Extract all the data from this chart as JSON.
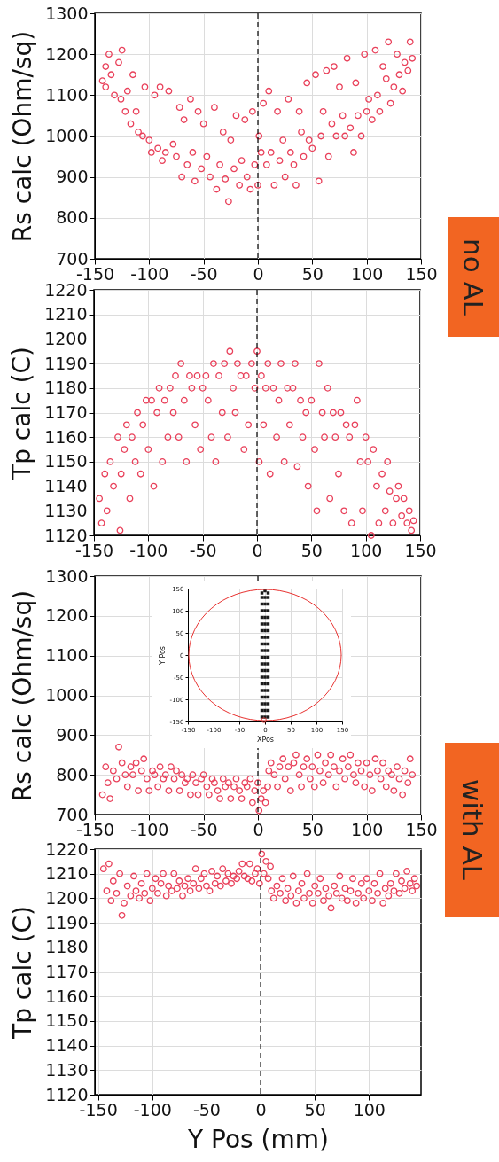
{
  "chart_data": [
    {
      "type": "scatter",
      "ylabel": "Rs calc (Ohm/sq)",
      "xlim": [
        -150,
        150
      ],
      "xticks": [
        -150,
        -100,
        -50,
        0,
        50,
        100,
        150
      ],
      "ylim": [
        700,
        1300
      ],
      "yticks": [
        700,
        800,
        900,
        1000,
        1100,
        1200,
        1300
      ],
      "grid": true,
      "marker": "circle",
      "annotations": [
        "no AL"
      ],
      "ref_lines": [
        {
          "axis": "x",
          "value": 0,
          "color": "#000000",
          "line_style": "dashed"
        }
      ],
      "series": [
        {
          "color": "#e9405a",
          "x": [
            -143,
            -140,
            -140,
            -137,
            -135,
            -132,
            -128,
            -126,
            -125,
            -122,
            -120,
            -117,
            -115,
            -112,
            -110,
            -106,
            -104,
            -100,
            -98,
            -95,
            -92,
            -90,
            -88,
            -85,
            -82,
            -78,
            -75,
            -72,
            -70,
            -68,
            -65,
            -62,
            -60,
            -58,
            -55,
            -52,
            -50,
            -47,
            -44,
            -40,
            -38,
            -35,
            -32,
            -30,
            -27,
            -25,
            -22,
            -20,
            -17,
            -15,
            -12,
            -10,
            -7,
            -5,
            -3,
            0,
            1,
            3,
            5,
            8,
            10,
            12,
            15,
            18,
            20,
            23,
            25,
            28,
            30,
            33,
            35,
            38,
            40,
            42,
            45,
            47,
            50,
            53,
            56,
            58,
            60,
            63,
            65,
            68,
            70,
            72,
            75,
            78,
            80,
            82,
            85,
            88,
            90,
            92,
            95,
            98,
            100,
            102,
            105,
            108,
            110,
            112,
            115,
            118,
            120,
            122,
            125,
            128,
            130,
            133,
            135,
            138,
            140,
            142
          ],
          "values": [
            1135,
            1170,
            1120,
            1200,
            1150,
            1100,
            1180,
            1090,
            1210,
            1060,
            1110,
            1030,
            1150,
            1060,
            1010,
            1000,
            1120,
            990,
            960,
            1100,
            970,
            1120,
            940,
            960,
            1110,
            980,
            950,
            1070,
            900,
            1040,
            930,
            1090,
            960,
            890,
            1060,
            920,
            1030,
            950,
            900,
            1070,
            870,
            930,
            1010,
            895,
            840,
            990,
            920,
            1050,
            880,
            940,
            1040,
            900,
            870,
            1060,
            930,
            880,
            1000,
            960,
            1080,
            930,
            1110,
            960,
            880,
            1060,
            940,
            990,
            900,
            1090,
            960,
            930,
            880,
            1060,
            1010,
            950,
            1130,
            990,
            970,
            1150,
            890,
            1000,
            1060,
            1160,
            950,
            1030,
            1170,
            1000,
            1120,
            1050,
            1000,
            1190,
            1020,
            960,
            1130,
            1050,
            1000,
            1200,
            1060,
            1090,
            1040,
            1210,
            1100,
            1060,
            1170,
            1140,
            1230,
            1080,
            1120,
            1200,
            1150,
            1110,
            1180,
            1160,
            1230,
            1190
          ]
        }
      ]
    },
    {
      "type": "scatter",
      "ylabel": "Tp calc (C)",
      "xlim": [
        -150,
        150
      ],
      "xticks": [
        -150,
        -100,
        -50,
        0,
        50,
        100,
        150
      ],
      "ylim": [
        1120,
        1220
      ],
      "yticks": [
        1120,
        1130,
        1140,
        1150,
        1160,
        1170,
        1180,
        1190,
        1200,
        1210,
        1220
      ],
      "grid": true,
      "marker": "circle",
      "ref_lines": [
        {
          "axis": "x",
          "value": 0,
          "color": "#000000",
          "line_style": "dashed"
        }
      ],
      "series": [
        {
          "color": "#e9405a",
          "x": [
            -145,
            -143,
            -140,
            -138,
            -135,
            -132,
            -128,
            -126,
            -125,
            -122,
            -120,
            -117,
            -115,
            -112,
            -110,
            -107,
            -105,
            -102,
            -100,
            -97,
            -95,
            -92,
            -90,
            -87,
            -85,
            -82,
            -80,
            -77,
            -75,
            -72,
            -70,
            -67,
            -65,
            -62,
            -60,
            -57,
            -55,
            -52,
            -50,
            -47,
            -45,
            -42,
            -40,
            -38,
            -35,
            -32,
            -30,
            -27,
            -25,
            -22,
            -20,
            -18,
            -15,
            -12,
            -10,
            -8,
            -5,
            -2,
            0,
            2,
            4,
            6,
            8,
            10,
            12,
            15,
            18,
            20,
            22,
            25,
            28,
            30,
            33,
            35,
            37,
            40,
            42,
            45,
            47,
            50,
            53,
            55,
            57,
            60,
            62,
            65,
            67,
            70,
            72,
            75,
            77,
            80,
            82,
            85,
            87,
            90,
            92,
            95,
            97,
            100,
            102,
            105,
            107,
            110,
            112,
            115,
            118,
            120,
            122,
            125,
            128,
            130,
            133,
            135,
            138,
            140,
            142,
            144
          ],
          "values": [
            1135,
            1125,
            1145,
            1130,
            1150,
            1140,
            1160,
            1122,
            1145,
            1155,
            1165,
            1135,
            1160,
            1150,
            1170,
            1145,
            1165,
            1175,
            1155,
            1175,
            1140,
            1170,
            1180,
            1150,
            1175,
            1160,
            1180,
            1170,
            1185,
            1160,
            1190,
            1175,
            1150,
            1185,
            1180,
            1165,
            1185,
            1155,
            1180,
            1185,
            1175,
            1160,
            1190,
            1150,
            1185,
            1170,
            1190,
            1160,
            1195,
            1180,
            1170,
            1190,
            1185,
            1155,
            1185,
            1165,
            1190,
            1180,
            1195,
            1150,
            1185,
            1165,
            1180,
            1190,
            1145,
            1180,
            1160,
            1175,
            1190,
            1150,
            1180,
            1165,
            1180,
            1190,
            1148,
            1175,
            1160,
            1170,
            1140,
            1175,
            1155,
            1130,
            1190,
            1170,
            1160,
            1180,
            1135,
            1170,
            1160,
            1145,
            1170,
            1130,
            1165,
            1160,
            1125,
            1165,
            1175,
            1150,
            1130,
            1160,
            1150,
            1120,
            1155,
            1140,
            1125,
            1145,
            1130,
            1150,
            1138,
            1125,
            1135,
            1140,
            1128,
            1135,
            1125,
            1130,
            1122,
            1126
          ]
        }
      ]
    },
    {
      "type": "scatter",
      "ylabel": "Rs calc (Ohm/sq)",
      "xlim": [
        -150,
        150
      ],
      "xticks": [
        -150,
        -100,
        -50,
        0,
        50,
        100,
        150
      ],
      "ylim": [
        700,
        1300
      ],
      "yticks": [
        700,
        800,
        900,
        1000,
        1100,
        1200,
        1300
      ],
      "grid": true,
      "marker": "circle",
      "annotations": [
        "with AL"
      ],
      "ref_lines": [
        {
          "axis": "x",
          "value": 0,
          "color": "#000000",
          "line_style": "dashed"
        }
      ],
      "series": [
        {
          "color": "#e9405a",
          "x": [
            -143,
            -140,
            -138,
            -136,
            -133,
            -130,
            -128,
            -125,
            -122,
            -120,
            -117,
            -115,
            -112,
            -110,
            -107,
            -105,
            -102,
            -100,
            -97,
            -95,
            -92,
            -90,
            -87,
            -85,
            -82,
            -80,
            -77,
            -75,
            -72,
            -70,
            -67,
            -65,
            -62,
            -60,
            -57,
            -55,
            -52,
            -50,
            -47,
            -45,
            -42,
            -40,
            -37,
            -35,
            -32,
            -30,
            -27,
            -25,
            -22,
            -20,
            -17,
            -15,
            -12,
            -10,
            -7,
            -5,
            -3,
            0,
            1,
            3,
            5,
            7,
            9,
            10,
            12,
            15,
            18,
            20,
            23,
            25,
            28,
            30,
            33,
            35,
            38,
            40,
            42,
            45,
            48,
            50,
            52,
            55,
            57,
            60,
            62,
            65,
            67,
            70,
            72,
            75,
            78,
            80,
            83,
            85,
            88,
            90,
            92,
            95,
            98,
            100,
            103,
            105,
            108,
            110,
            113,
            115,
            118,
            120,
            123,
            125,
            128,
            130,
            133,
            135,
            138,
            140,
            142
          ],
          "values": [
            750,
            820,
            780,
            740,
            810,
            790,
            870,
            830,
            800,
            770,
            820,
            800,
            830,
            760,
            810,
            840,
            790,
            760,
            810,
            800,
            770,
            820,
            790,
            800,
            760,
            820,
            790,
            810,
            760,
            800,
            780,
            790,
            750,
            800,
            780,
            750,
            790,
            800,
            770,
            750,
            790,
            780,
            760,
            740,
            790,
            770,
            780,
            740,
            770,
            790,
            760,
            740,
            780,
            770,
            790,
            730,
            760,
            780,
            710,
            740,
            760,
            730,
            770,
            810,
            830,
            800,
            770,
            820,
            840,
            790,
            820,
            760,
            830,
            850,
            800,
            770,
            820,
            840,
            790,
            820,
            770,
            850,
            810,
            780,
            830,
            800,
            850,
            820,
            770,
            810,
            840,
            790,
            820,
            850,
            800,
            780,
            830,
            810,
            770,
            830,
            800,
            760,
            840,
            810,
            790,
            830,
            770,
            810,
            800,
            760,
            820,
            790,
            750,
            810,
            780,
            840,
            800
          ]
        }
      ]
    },
    {
      "type": "scatter",
      "xlabel": "XPos",
      "ylabel": "Y Pos",
      "xlim": [
        -150,
        150
      ],
      "xticks": [
        -150,
        -100,
        -50,
        0,
        50,
        100,
        150
      ],
      "ylim": [
        -150,
        150
      ],
      "yticks": [
        -150,
        -100,
        -50,
        0,
        50,
        100,
        150
      ],
      "grid": true,
      "series": [
        {
          "marker": "square",
          "color": "#1a1a1a",
          "x": [
            -6,
            -6,
            -6,
            -6,
            -6,
            -6,
            -6,
            -6,
            -6,
            -6,
            -6,
            -6,
            -6,
            -6,
            -6,
            -6,
            -6,
            -6,
            -6,
            -6,
            0,
            0,
            0,
            0,
            0,
            0,
            0,
            0,
            0,
            0,
            0,
            0,
            0,
            0,
            0,
            0,
            0,
            0,
            0,
            0,
            6,
            6,
            6,
            6,
            6,
            6,
            6,
            6,
            6,
            6,
            6,
            6,
            6,
            6,
            6,
            6,
            6,
            6,
            6,
            6
          ],
          "values": [
            -140,
            -125,
            -110,
            -95,
            -80,
            -65,
            -50,
            -35,
            -20,
            -5,
            10,
            25,
            40,
            55,
            70,
            85,
            100,
            115,
            130,
            140,
            -140,
            -125,
            -110,
            -95,
            -80,
            -65,
            -50,
            -35,
            -20,
            -5,
            10,
            25,
            40,
            55,
            70,
            85,
            100,
            115,
            130,
            145,
            -140,
            -125,
            -110,
            -95,
            -80,
            -65,
            -50,
            -35,
            -20,
            -5,
            10,
            25,
            40,
            55,
            70,
            85,
            100,
            115,
            130,
            140
          ]
        },
        {
          "marker": "circle",
          "color": "#e8312f",
          "x": [
            -2
          ],
          "values": [
            -147
          ]
        }
      ]
    },
    {
      "type": "scatter",
      "xlabel": "Y Pos (mm)",
      "ylabel": "Tp calc (C)",
      "xlim": [
        -153,
        148
      ],
      "xticks": [
        -150,
        -100,
        -50,
        0,
        50,
        100
      ],
      "ylim": [
        1120,
        1220
      ],
      "yticks": [
        1120,
        1130,
        1140,
        1150,
        1160,
        1170,
        1180,
        1190,
        1200,
        1210,
        1220
      ],
      "grid": true,
      "marker": "circle",
      "ref_lines": [
        {
          "axis": "x",
          "value": 0,
          "color": "#000000",
          "line_style": "dashed"
        }
      ],
      "series": [
        {
          "color": "#e9405a",
          "x": [
            -145,
            -142,
            -140,
            -138,
            -136,
            -133,
            -130,
            -128,
            -126,
            -123,
            -120,
            -117,
            -115,
            -112,
            -110,
            -107,
            -105,
            -102,
            -100,
            -97,
            -95,
            -92,
            -90,
            -87,
            -85,
            -82,
            -80,
            -77,
            -75,
            -72,
            -70,
            -67,
            -65,
            -62,
            -60,
            -57,
            -55,
            -52,
            -50,
            -47,
            -45,
            -42,
            -40,
            -37,
            -35,
            -32,
            -30,
            -27,
            -25,
            -22,
            -20,
            -17,
            -15,
            -12,
            -10,
            -8,
            -5,
            -3,
            -1,
            1,
            3,
            5,
            7,
            9,
            10,
            12,
            15,
            18,
            20,
            23,
            25,
            28,
            30,
            33,
            35,
            38,
            40,
            43,
            45,
            48,
            50,
            53,
            55,
            58,
            60,
            63,
            65,
            68,
            70,
            73,
            75,
            78,
            80,
            83,
            85,
            88,
            90,
            93,
            95,
            98,
            100,
            103,
            105,
            108,
            110,
            113,
            115,
            118,
            120,
            123,
            125,
            128,
            130,
            133,
            135,
            138,
            140,
            142,
            144
          ],
          "values": [
            1212,
            1203,
            1214,
            1199,
            1207,
            1202,
            1210,
            1193,
            1198,
            1205,
            1201,
            1209,
            1203,
            1200,
            1206,
            1202,
            1210,
            1199,
            1204,
            1208,
            1202,
            1206,
            1210,
            1201,
            1205,
            1203,
            1210,
            1204,
            1207,
            1201,
            1205,
            1208,
            1203,
            1206,
            1212,
            1204,
            1208,
            1210,
            1205,
            1203,
            1211,
            1206,
            1209,
            1205,
            1212,
            1207,
            1210,
            1206,
            1209,
            1208,
            1211,
            1214,
            1209,
            1208,
            1214,
            1207,
            1210,
            1212,
            1206,
            1218,
            1210,
            1215,
            1208,
            1213,
            1203,
            1200,
            1205,
            1202,
            1208,
            1199,
            1204,
            1201,
            1209,
            1198,
            1203,
            1206,
            1200,
            1210,
            1202,
            1198,
            1205,
            1202,
            1208,
            1199,
            1204,
            1201,
            1196,
            1205,
            1202,
            1209,
            1200,
            1204,
            1199,
            1203,
            1208,
            1198,
            1202,
            1206,
            1200,
            1208,
            1203,
            1199,
            1206,
            1202,
            1210,
            1198,
            1204,
            1201,
            1206,
            1203,
            1210,
            1202,
            1207,
            1204,
            1211,
            1206,
            1203,
            1208,
            1205
          ]
        }
      ]
    }
  ]
}
